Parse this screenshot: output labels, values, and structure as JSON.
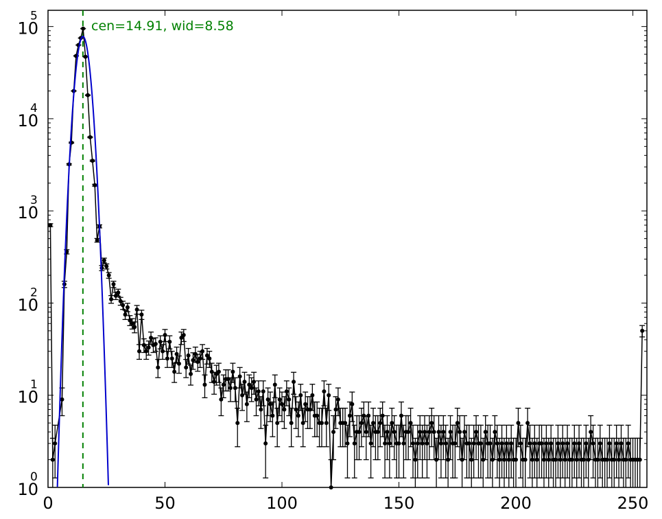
{
  "chart_data": {
    "type": "scatter",
    "title": "",
    "xlabel": "",
    "ylabel": "",
    "xlim": [
      0,
      256
    ],
    "ylim": [
      1,
      150000
    ],
    "y_scale": "log",
    "grid": false,
    "x_ticks": [
      {
        "value": 0,
        "label": "0"
      },
      {
        "value": 50,
        "label": "50"
      },
      {
        "value": 100,
        "label": "100"
      },
      {
        "value": 150,
        "label": "150"
      },
      {
        "value": 200,
        "label": "200"
      },
      {
        "value": 250,
        "label": "250"
      }
    ],
    "y_ticks": [
      {
        "value": 1,
        "base": "10",
        "exp": "0"
      },
      {
        "value": 10,
        "base": "10",
        "exp": "1"
      },
      {
        "value": 100,
        "base": "10",
        "exp": "2"
      },
      {
        "value": 1000,
        "base": "10",
        "exp": "3"
      },
      {
        "value": 10000,
        "base": "10",
        "exp": "4"
      },
      {
        "value": 100000,
        "base": "10",
        "exp": "5"
      }
    ],
    "annotation": "cen=14.91, wid=8.58",
    "fit": {
      "center": 14.91,
      "amplitude": 78000,
      "sigma": 2.3,
      "color": "#0000cc"
    },
    "marker_line": {
      "x": 14.91,
      "color": "#008000",
      "style": "dashed"
    },
    "series": [
      {
        "color": "#000000",
        "points": [
          [
            1,
            700
          ],
          [
            2,
            2
          ],
          [
            3,
            3
          ],
          [
            6,
            9
          ],
          [
            7,
            160
          ],
          [
            8,
            360
          ],
          [
            9,
            3200
          ],
          [
            10,
            5500
          ],
          [
            11,
            20000
          ],
          [
            12,
            48000
          ],
          [
            13,
            63000
          ],
          [
            14,
            75000
          ],
          [
            15,
            95000
          ],
          [
            16,
            47000
          ],
          [
            17,
            18000
          ],
          [
            18,
            6300
          ],
          [
            19,
            3500
          ],
          [
            20,
            1900
          ],
          [
            21,
            480
          ],
          [
            22,
            680
          ],
          [
            23,
            240
          ],
          [
            24,
            290
          ],
          [
            25,
            250
          ],
          [
            26,
            200
          ],
          [
            27,
            110
          ],
          [
            28,
            160
          ],
          [
            29,
            120
          ],
          [
            30,
            130
          ],
          [
            31,
            105
          ],
          [
            32,
            95
          ],
          [
            33,
            75
          ],
          [
            34,
            90
          ],
          [
            35,
            65
          ],
          [
            36,
            60
          ],
          [
            37,
            55
          ],
          [
            38,
            85
          ],
          [
            39,
            30
          ],
          [
            40,
            75
          ],
          [
            41,
            35
          ],
          [
            42,
            30
          ],
          [
            43,
            33
          ],
          [
            44,
            42
          ],
          [
            45,
            35
          ],
          [
            46,
            36
          ],
          [
            47,
            20
          ],
          [
            48,
            38
          ],
          [
            49,
            30
          ],
          [
            50,
            45
          ],
          [
            51,
            25
          ],
          [
            52,
            38
          ],
          [
            53,
            25
          ],
          [
            54,
            18
          ],
          [
            55,
            28
          ],
          [
            56,
            22
          ],
          [
            57,
            42
          ],
          [
            58,
            45
          ],
          [
            59,
            20
          ],
          [
            60,
            27
          ],
          [
            61,
            17
          ],
          [
            62,
            24
          ],
          [
            63,
            28
          ],
          [
            64,
            23
          ],
          [
            65,
            25
          ],
          [
            66,
            30
          ],
          [
            67,
            13
          ],
          [
            68,
            27
          ],
          [
            69,
            25
          ],
          [
            70,
            18
          ],
          [
            71,
            14
          ],
          [
            72,
            17
          ],
          [
            73,
            18
          ],
          [
            74,
            9
          ],
          [
            75,
            13
          ],
          [
            76,
            15
          ],
          [
            77,
            15
          ],
          [
            78,
            12
          ],
          [
            79,
            18
          ],
          [
            80,
            12
          ],
          [
            81,
            5
          ],
          [
            82,
            16
          ],
          [
            83,
            10
          ],
          [
            84,
            14
          ],
          [
            85,
            8
          ],
          [
            86,
            13
          ],
          [
            87,
            12
          ],
          [
            88,
            14
          ],
          [
            89,
            9
          ],
          [
            90,
            11
          ],
          [
            91,
            7
          ],
          [
            92,
            11
          ],
          [
            93,
            3
          ],
          [
            94,
            9
          ],
          [
            95,
            8
          ],
          [
            96,
            6
          ],
          [
            97,
            13
          ],
          [
            98,
            5
          ],
          [
            99,
            9
          ],
          [
            100,
            8
          ],
          [
            101,
            7
          ],
          [
            102,
            11
          ],
          [
            103,
            9
          ],
          [
            104,
            5
          ],
          [
            105,
            14
          ],
          [
            106,
            7
          ],
          [
            107,
            6
          ],
          [
            108,
            10
          ],
          [
            109,
            5
          ],
          [
            110,
            8
          ],
          [
            111,
            7
          ],
          [
            112,
            7
          ],
          [
            113,
            10
          ],
          [
            114,
            6
          ],
          [
            115,
            6
          ],
          [
            116,
            5
          ],
          [
            117,
            5
          ],
          [
            118,
            11
          ],
          [
            119,
            5
          ],
          [
            120,
            10
          ],
          [
            121,
            1
          ],
          [
            122,
            4
          ],
          [
            123,
            7
          ],
          [
            124,
            9
          ],
          [
            125,
            5
          ],
          [
            126,
            5
          ],
          [
            127,
            5
          ],
          [
            128,
            3
          ],
          [
            129,
            6
          ],
          [
            130,
            8
          ],
          [
            131,
            3
          ],
          [
            132,
            4
          ],
          [
            133,
            4
          ],
          [
            134,
            5
          ],
          [
            135,
            6
          ],
          [
            136,
            4
          ],
          [
            137,
            6
          ],
          [
            138,
            3
          ],
          [
            139,
            5
          ],
          [
            140,
            4
          ],
          [
            141,
            4
          ],
          [
            142,
            5
          ],
          [
            143,
            6
          ],
          [
            144,
            3
          ],
          [
            145,
            4
          ],
          [
            146,
            3
          ],
          [
            147,
            5
          ],
          [
            148,
            4
          ],
          [
            149,
            3
          ],
          [
            150,
            3
          ],
          [
            151,
            6
          ],
          [
            152,
            3
          ],
          [
            153,
            4
          ],
          [
            154,
            4
          ],
          [
            155,
            5
          ],
          [
            156,
            3
          ],
          [
            157,
            2
          ],
          [
            158,
            3
          ],
          [
            159,
            4
          ],
          [
            160,
            3
          ],
          [
            161,
            4
          ],
          [
            162,
            3
          ],
          [
            163,
            4
          ],
          [
            164,
            5
          ],
          [
            165,
            4
          ],
          [
            166,
            2
          ],
          [
            167,
            4
          ],
          [
            168,
            3
          ],
          [
            169,
            4
          ],
          [
            170,
            3
          ],
          [
            171,
            2
          ],
          [
            172,
            4
          ],
          [
            173,
            3
          ],
          [
            174,
            3
          ],
          [
            175,
            5
          ],
          [
            176,
            4
          ],
          [
            177,
            2
          ],
          [
            178,
            4
          ],
          [
            179,
            3
          ],
          [
            180,
            3
          ],
          [
            181,
            2
          ],
          [
            182,
            3
          ],
          [
            183,
            4
          ],
          [
            184,
            3
          ],
          [
            185,
            3
          ],
          [
            186,
            2
          ],
          [
            187,
            4
          ],
          [
            188,
            3
          ],
          [
            189,
            3
          ],
          [
            190,
            2
          ],
          [
            191,
            4
          ],
          [
            192,
            3
          ],
          [
            193,
            2
          ],
          [
            194,
            3
          ],
          [
            195,
            2
          ],
          [
            196,
            3
          ],
          [
            197,
            2
          ],
          [
            198,
            3
          ],
          [
            199,
            2
          ],
          [
            200,
            2
          ],
          [
            201,
            5
          ],
          [
            202,
            3
          ],
          [
            203,
            2
          ],
          [
            204,
            2
          ],
          [
            205,
            5
          ],
          [
            206,
            3
          ],
          [
            207,
            2
          ],
          [
            208,
            3
          ],
          [
            209,
            2
          ],
          [
            210,
            3
          ],
          [
            211,
            3
          ],
          [
            212,
            2
          ],
          [
            213,
            3
          ],
          [
            214,
            2
          ],
          [
            215,
            3
          ],
          [
            216,
            2
          ],
          [
            217,
            2
          ],
          [
            218,
            3
          ],
          [
            219,
            2
          ],
          [
            220,
            3
          ],
          [
            221,
            2
          ],
          [
            222,
            3
          ],
          [
            223,
            2
          ],
          [
            224,
            2
          ],
          [
            225,
            3
          ],
          [
            226,
            2
          ],
          [
            227,
            3
          ],
          [
            228,
            2
          ],
          [
            229,
            2
          ],
          [
            230,
            3
          ],
          [
            231,
            2
          ],
          [
            232,
            4
          ],
          [
            233,
            3
          ],
          [
            234,
            2
          ],
          [
            235,
            2
          ],
          [
            236,
            3
          ],
          [
            237,
            2
          ],
          [
            238,
            2
          ],
          [
            239,
            2
          ],
          [
            240,
            3
          ],
          [
            241,
            2
          ],
          [
            242,
            2
          ],
          [
            243,
            3
          ],
          [
            244,
            2
          ],
          [
            245,
            3
          ],
          [
            246,
            2
          ],
          [
            247,
            2
          ],
          [
            248,
            3
          ],
          [
            249,
            2
          ],
          [
            250,
            2
          ],
          [
            251,
            2
          ],
          [
            252,
            2
          ],
          [
            253,
            2
          ],
          [
            254,
            50
          ]
        ]
      }
    ]
  }
}
